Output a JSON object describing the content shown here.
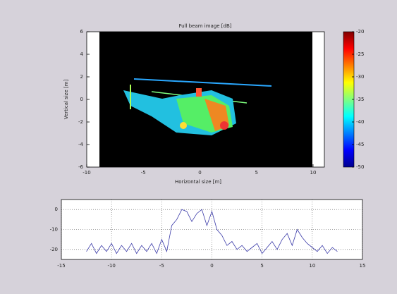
{
  "chart_data": [
    {
      "type": "image",
      "title": "Full beam image [dB]",
      "xlabel": "Horizontal size [m]",
      "ylabel": "Vertical size [m]",
      "xlim": [
        -10,
        11
      ],
      "xticks": [
        -10,
        -5,
        0,
        5,
        10
      ],
      "ylim": [
        -6,
        6
      ],
      "yticks": [
        -6,
        -4,
        -2,
        0,
        2,
        4,
        6
      ],
      "colorbar": {
        "clim": [
          -50,
          -20
        ],
        "ticks": [
          -20,
          -25,
          -30,
          -35,
          -40,
          -45,
          -50
        ]
      }
    },
    {
      "type": "line",
      "xlim": [
        -15,
        15
      ],
      "xticks": [
        -15,
        -10,
        -5,
        0,
        5,
        10,
        15
      ],
      "ylim": [
        -25,
        5
      ],
      "yticks": [
        0,
        -10,
        -20
      ],
      "grid": true,
      "x": [
        -12.5,
        -12,
        -11.5,
        -11,
        -10.5,
        -10,
        -9.5,
        -9,
        -8.5,
        -8,
        -7.5,
        -7,
        -6.5,
        -6,
        -5.5,
        -5,
        -4.5,
        -4,
        -3.5,
        -3,
        -2.5,
        -2,
        -1.5,
        -1,
        -0.5,
        0,
        0.5,
        1,
        1.5,
        2,
        2.5,
        3,
        3.5,
        4,
        4.5,
        5,
        5.5,
        6,
        6.5,
        7,
        7.5,
        8,
        8.5,
        9,
        9.5,
        10,
        10.5,
        11,
        11.5,
        12,
        12.5
      ],
      "series": [
        {
          "color": "#3a3aa8",
          "values": [
            -21,
            -17,
            -22,
            -18,
            -21,
            -17,
            -22,
            -18,
            -21,
            -17,
            -22,
            -18,
            -21,
            -17,
            -22,
            -15,
            -21,
            -8,
            -5,
            0,
            -1,
            -6,
            -2,
            0,
            -8,
            -1,
            -10,
            -13,
            -18,
            -16,
            -20,
            -18,
            -21,
            -19,
            -17,
            -22,
            -19,
            -16,
            -20,
            -15,
            -12,
            -18,
            -10,
            -14,
            -17,
            -19,
            -21,
            -18,
            -22,
            -19,
            -21
          ]
        }
      ]
    }
  ]
}
